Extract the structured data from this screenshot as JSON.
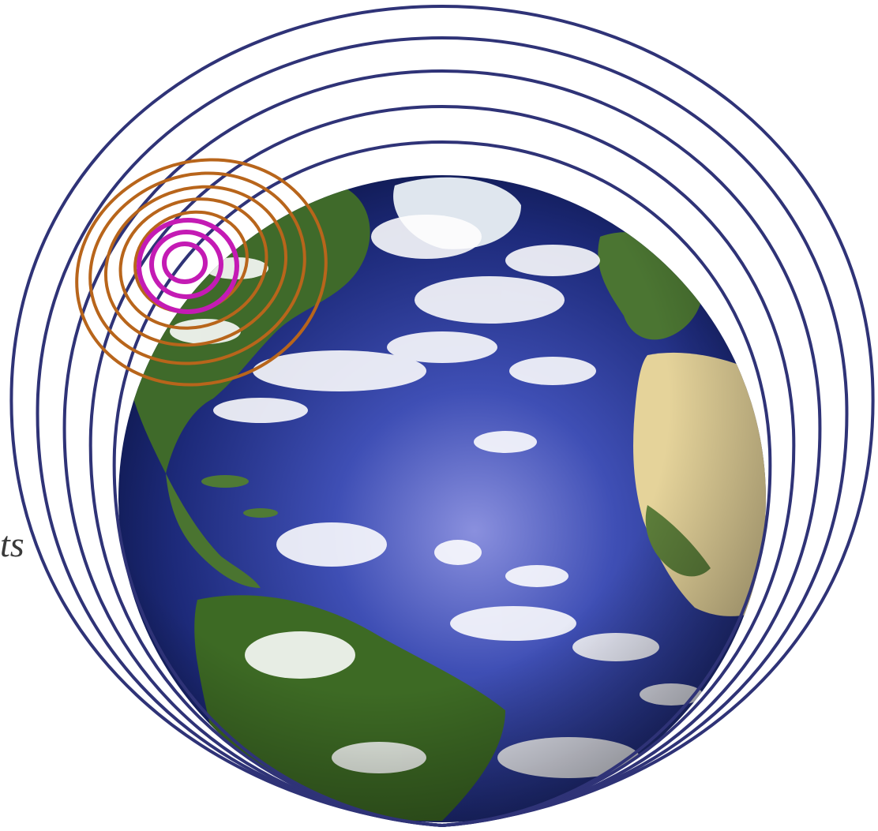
{
  "figure": {
    "edge_text": "ts",
    "colors": {
      "background": "#ffffff",
      "outer_rings": "#2f3377",
      "middle_rings": "#b8651b",
      "inner_rings": "#c41bb4",
      "ocean_light": "#7f86d6",
      "ocean_mid": "#2a3a9a",
      "ocean_dark": "#101a52",
      "land_green": "#3f6a2a",
      "land_desert": "#e7d59b",
      "clouds": "#ffffff"
    },
    "ring_groups": [
      {
        "name": "outer-rings",
        "count": 5,
        "color_key": "outer_rings"
      },
      {
        "name": "middle-rings",
        "count": 5,
        "color_key": "middle_rings"
      },
      {
        "name": "inner-rings",
        "count": 3,
        "color_key": "inner_rings"
      }
    ],
    "icons": [
      "earth-globe-icon"
    ]
  }
}
